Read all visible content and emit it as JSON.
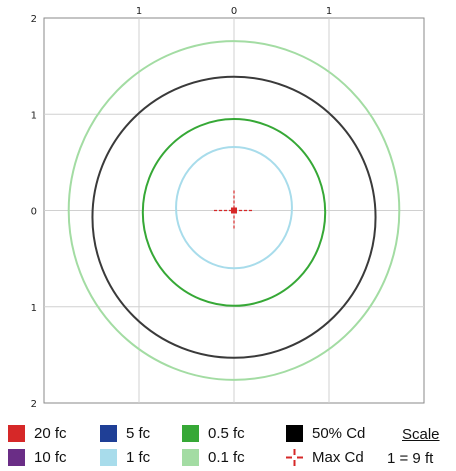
{
  "chart_data": {
    "type": "isofootcandle",
    "xlim": [
      -2,
      2
    ],
    "ylim": [
      -2,
      2
    ],
    "grid": true,
    "x_ticks": [
      {
        "value": -1,
        "label": "1"
      },
      {
        "value": 0,
        "label": "0"
      },
      {
        "value": 1,
        "label": "1"
      }
    ],
    "y_ticks": [
      {
        "value": 2,
        "label": "2"
      },
      {
        "value": 1,
        "label": "1"
      },
      {
        "value": 0,
        "label": "0"
      },
      {
        "value": -1,
        "label": "1"
      },
      {
        "value": -2,
        "label": "2"
      }
    ],
    "contours": [
      {
        "level": "0.1 fc",
        "color": "#a3dca3",
        "cx": 0.0,
        "cy": 0.0,
        "rx": 1.74,
        "ry": 1.76
      },
      {
        "level": "50% Cd",
        "color": "#3a3a3a",
        "cx": 0.0,
        "cy": -0.07,
        "rx": 1.49,
        "ry": 1.46
      },
      {
        "level": "0.5 fc",
        "color": "#36a836",
        "cx": 0.0,
        "cy": -0.02,
        "rx": 0.96,
        "ry": 0.97
      },
      {
        "level": "1 fc",
        "color": "#a8dceb",
        "cx": 0.0,
        "cy": 0.03,
        "rx": 0.61,
        "ry": 0.63
      }
    ],
    "max_cd": {
      "x": 0.0,
      "y": 0.0,
      "color": "#d62828"
    }
  },
  "legend": {
    "items": [
      {
        "label": "20 fc",
        "color": "#d62828",
        "kind": "swatch"
      },
      {
        "label": "5 fc",
        "color": "#1f3f96",
        "kind": "swatch"
      },
      {
        "label": "0.5 fc",
        "color": "#36a836",
        "kind": "swatch"
      },
      {
        "label": "50% Cd",
        "color": "#000000",
        "kind": "swatch"
      },
      {
        "label": "10 fc",
        "color": "#6a2d86",
        "kind": "swatch"
      },
      {
        "label": "1 fc",
        "color": "#a8dceb",
        "kind": "swatch"
      },
      {
        "label": "0.1 fc",
        "color": "#a3dca3",
        "kind": "swatch"
      },
      {
        "label": "Max Cd",
        "color": "#d62828",
        "kind": "crosshair",
        "icon": "crosshair-icon"
      }
    ],
    "scale_title": "Scale",
    "scale_value": "1 = 9 ft"
  }
}
